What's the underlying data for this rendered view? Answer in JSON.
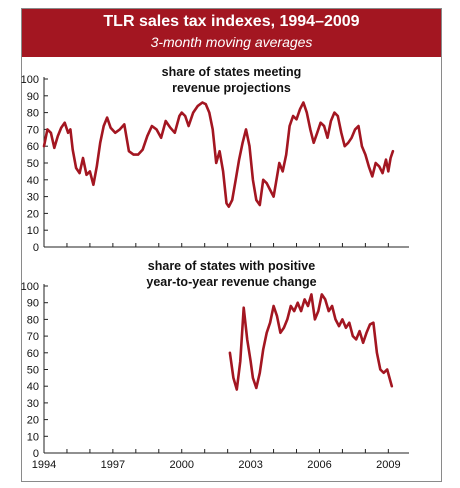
{
  "header": {
    "title": "TLR sales tax indexes, 1994–2009",
    "subtitle": "3-month moving averages"
  },
  "colors": {
    "header_bg": "#a31621",
    "series": "#a31621"
  },
  "chart_data": [
    {
      "type": "line",
      "title_lines": [
        "share of states meeting",
        "revenue projections"
      ],
      "xlabel": "",
      "ylabel": "",
      "xlim": [
        1994,
        2009.9
      ],
      "ylim": [
        0,
        100
      ],
      "yticks": [
        "0",
        "10",
        "20",
        "30",
        "40",
        "50",
        "60",
        "70",
        "80",
        "90",
        "100"
      ],
      "grid": false,
      "series": [
        {
          "x": [
            1994.0,
            1994.15,
            1994.3,
            1994.45,
            1994.6,
            1994.75,
            1994.9,
            1995.05,
            1995.15,
            1995.25,
            1995.4,
            1995.55,
            1995.7,
            1995.85,
            1996.0,
            1996.15,
            1996.3,
            1996.45,
            1996.6,
            1996.75,
            1996.9,
            1997.1,
            1997.3,
            1997.5,
            1997.7,
            1997.9,
            1998.1,
            1998.3,
            1998.5,
            1998.7,
            1998.9,
            1999.1,
            1999.3,
            1999.5,
            1999.7,
            1999.9,
            2000.0,
            2000.15,
            2000.3,
            2000.5,
            2000.7,
            2000.9,
            2001.05,
            2001.2,
            2001.35,
            2001.5,
            2001.65,
            2001.8,
            2001.95,
            2002.05,
            2002.2,
            2002.35,
            2002.5,
            2002.65,
            2002.8,
            2002.95,
            2003.1,
            2003.25,
            2003.4,
            2003.55,
            2003.7,
            2003.85,
            2004.0,
            2004.1,
            2004.25,
            2004.4,
            2004.55,
            2004.7,
            2004.85,
            2005.0,
            2005.15,
            2005.3,
            2005.45,
            2005.6,
            2005.75,
            2005.9,
            2006.05,
            2006.2,
            2006.35,
            2006.5,
            2006.65,
            2006.8,
            2006.95,
            2007.1,
            2007.25,
            2007.4,
            2007.55,
            2007.7,
            2007.85,
            2008.0,
            2008.15,
            2008.3,
            2008.45,
            2008.6,
            2008.75,
            2008.9,
            2009.0,
            2009.1,
            2009.2
          ],
          "y": [
            60,
            70,
            68,
            59,
            66,
            71,
            74,
            68,
            70,
            58,
            47,
            44,
            53,
            43,
            45,
            37,
            48,
            62,
            72,
            77,
            71,
            68,
            70,
            73,
            57,
            55,
            55,
            58,
            66,
            72,
            70,
            65,
            75,
            71,
            68,
            78,
            80,
            78,
            72,
            80,
            84,
            86,
            85,
            80,
            70,
            50,
            57,
            45,
            26,
            24,
            28,
            40,
            52,
            62,
            70,
            60,
            40,
            28,
            25,
            40,
            38,
            34,
            30,
            38,
            50,
            45,
            55,
            72,
            78,
            76,
            82,
            86,
            80,
            70,
            62,
            68,
            74,
            72,
            65,
            75,
            80,
            78,
            68,
            60,
            62,
            65,
            70,
            72,
            60,
            55,
            48,
            42,
            50,
            48,
            44,
            52,
            45,
            53,
            57
          ]
        }
      ]
    },
    {
      "type": "line",
      "title_lines": [
        "share of states with positive",
        "year-to-year revenue change"
      ],
      "xlabel": "",
      "ylabel": "",
      "xlim": [
        1994,
        2009.9
      ],
      "ylim": [
        0,
        100
      ],
      "yticks": [
        "0",
        "10",
        "20",
        "30",
        "40",
        "50",
        "60",
        "70",
        "80",
        "90",
        "100"
      ],
      "xticks": [
        "1994",
        "1997",
        "2000",
        "2003",
        "2006",
        "2009"
      ],
      "grid": false,
      "series": [
        {
          "x": [
            2002.1,
            2002.25,
            2002.4,
            2002.55,
            2002.7,
            2002.85,
            2003.0,
            2003.1,
            2003.25,
            2003.4,
            2003.55,
            2003.7,
            2003.85,
            2004.0,
            2004.15,
            2004.3,
            2004.45,
            2004.6,
            2004.75,
            2004.9,
            2005.05,
            2005.2,
            2005.35,
            2005.5,
            2005.65,
            2005.8,
            2005.95,
            2006.1,
            2006.25,
            2006.4,
            2006.55,
            2006.7,
            2006.85,
            2007.0,
            2007.15,
            2007.3,
            2007.45,
            2007.6,
            2007.75,
            2007.9,
            2008.05,
            2008.2,
            2008.35,
            2008.5,
            2008.65,
            2008.8,
            2008.95,
            2009.05,
            2009.15
          ],
          "y": [
            60,
            45,
            38,
            55,
            87,
            68,
            55,
            45,
            39,
            48,
            62,
            72,
            78,
            88,
            82,
            72,
            75,
            80,
            88,
            85,
            90,
            85,
            92,
            88,
            95,
            80,
            85,
            95,
            92,
            85,
            88,
            80,
            76,
            80,
            75,
            78,
            70,
            68,
            73,
            66,
            72,
            77,
            78,
            60,
            50,
            48,
            50,
            45,
            40
          ]
        }
      ]
    }
  ]
}
